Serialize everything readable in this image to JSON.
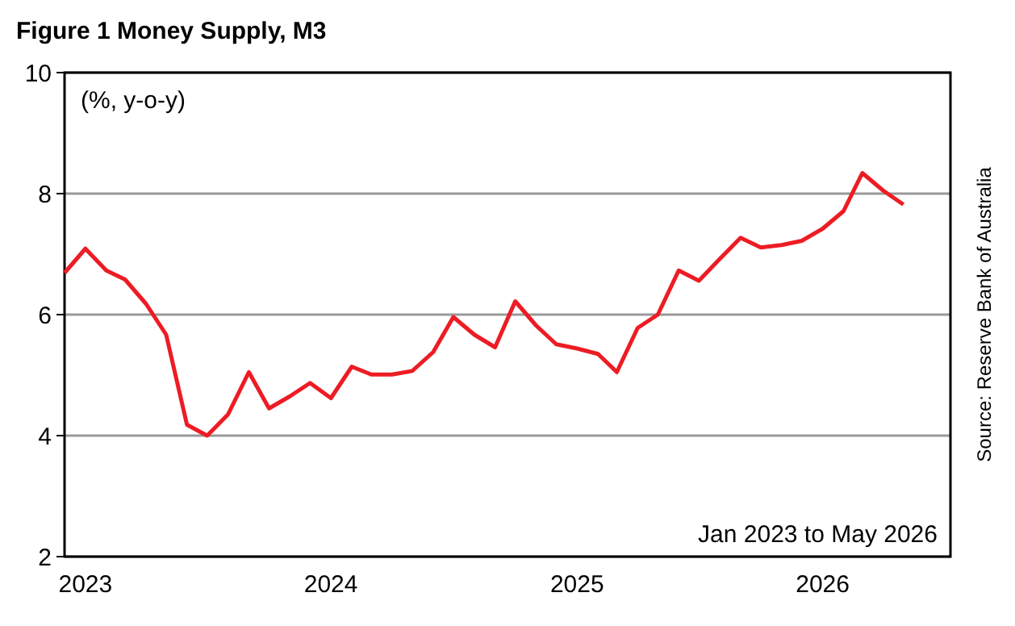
{
  "chart_data": {
    "type": "line",
    "title": "Figure 1 Money Supply, M3",
    "annotations": [
      "(%, y-o-y)",
      "Jan 2023 to May 2026",
      "Source: Reserve Bank of Australia"
    ],
    "x": [
      "2022-12",
      "2023-01",
      "2023-02",
      "2023-03",
      "2023-04",
      "2023-05",
      "2023-06",
      "2023-07",
      "2023-08",
      "2023-09",
      "2023-10",
      "2023-11",
      "2023-12",
      "2024-01",
      "2024-02",
      "2024-03",
      "2024-04",
      "2024-05",
      "2024-06",
      "2024-07",
      "2024-08",
      "2024-09",
      "2024-10",
      "2024-11",
      "2024-12",
      "2025-01",
      "2025-02",
      "2025-03",
      "2025-04",
      "2025-05",
      "2025-06",
      "2025-07",
      "2025-08",
      "2025-09",
      "2025-10",
      "2025-11",
      "2025-12",
      "2026-01",
      "2026-02",
      "2026-03",
      "2026-04",
      "2026-05"
    ],
    "series": [
      {
        "color": "#ed1c24",
        "values": [
          6.69,
          7.09,
          6.73,
          6.58,
          6.18,
          5.67,
          4.18,
          4.0,
          4.35,
          5.05,
          4.45,
          4.65,
          4.87,
          4.62,
          5.14,
          5.01,
          5.01,
          5.07,
          5.38,
          5.96,
          5.67,
          5.46,
          6.22,
          5.82,
          5.51,
          5.44,
          5.35,
          5.05,
          5.78,
          6.0,
          6.73,
          6.56,
          6.92,
          7.27,
          7.11,
          7.15,
          7.22,
          7.42,
          7.71,
          8.34,
          8.05,
          7.82
        ]
      }
    ],
    "xlim": [
      "2022-12",
      "2026-07-10"
    ],
    "xticks": [
      {
        "value": "2023-01",
        "label": "2023"
      },
      {
        "value": "2024-01",
        "label": "2024"
      },
      {
        "value": "2025-01",
        "label": "2025"
      },
      {
        "value": "2026-01",
        "label": "2026"
      }
    ],
    "ylim": [
      2,
      10
    ],
    "yticks": [
      2,
      4,
      6,
      8,
      10
    ],
    "grid": "y",
    "marker": "none",
    "line_style": "solid"
  }
}
